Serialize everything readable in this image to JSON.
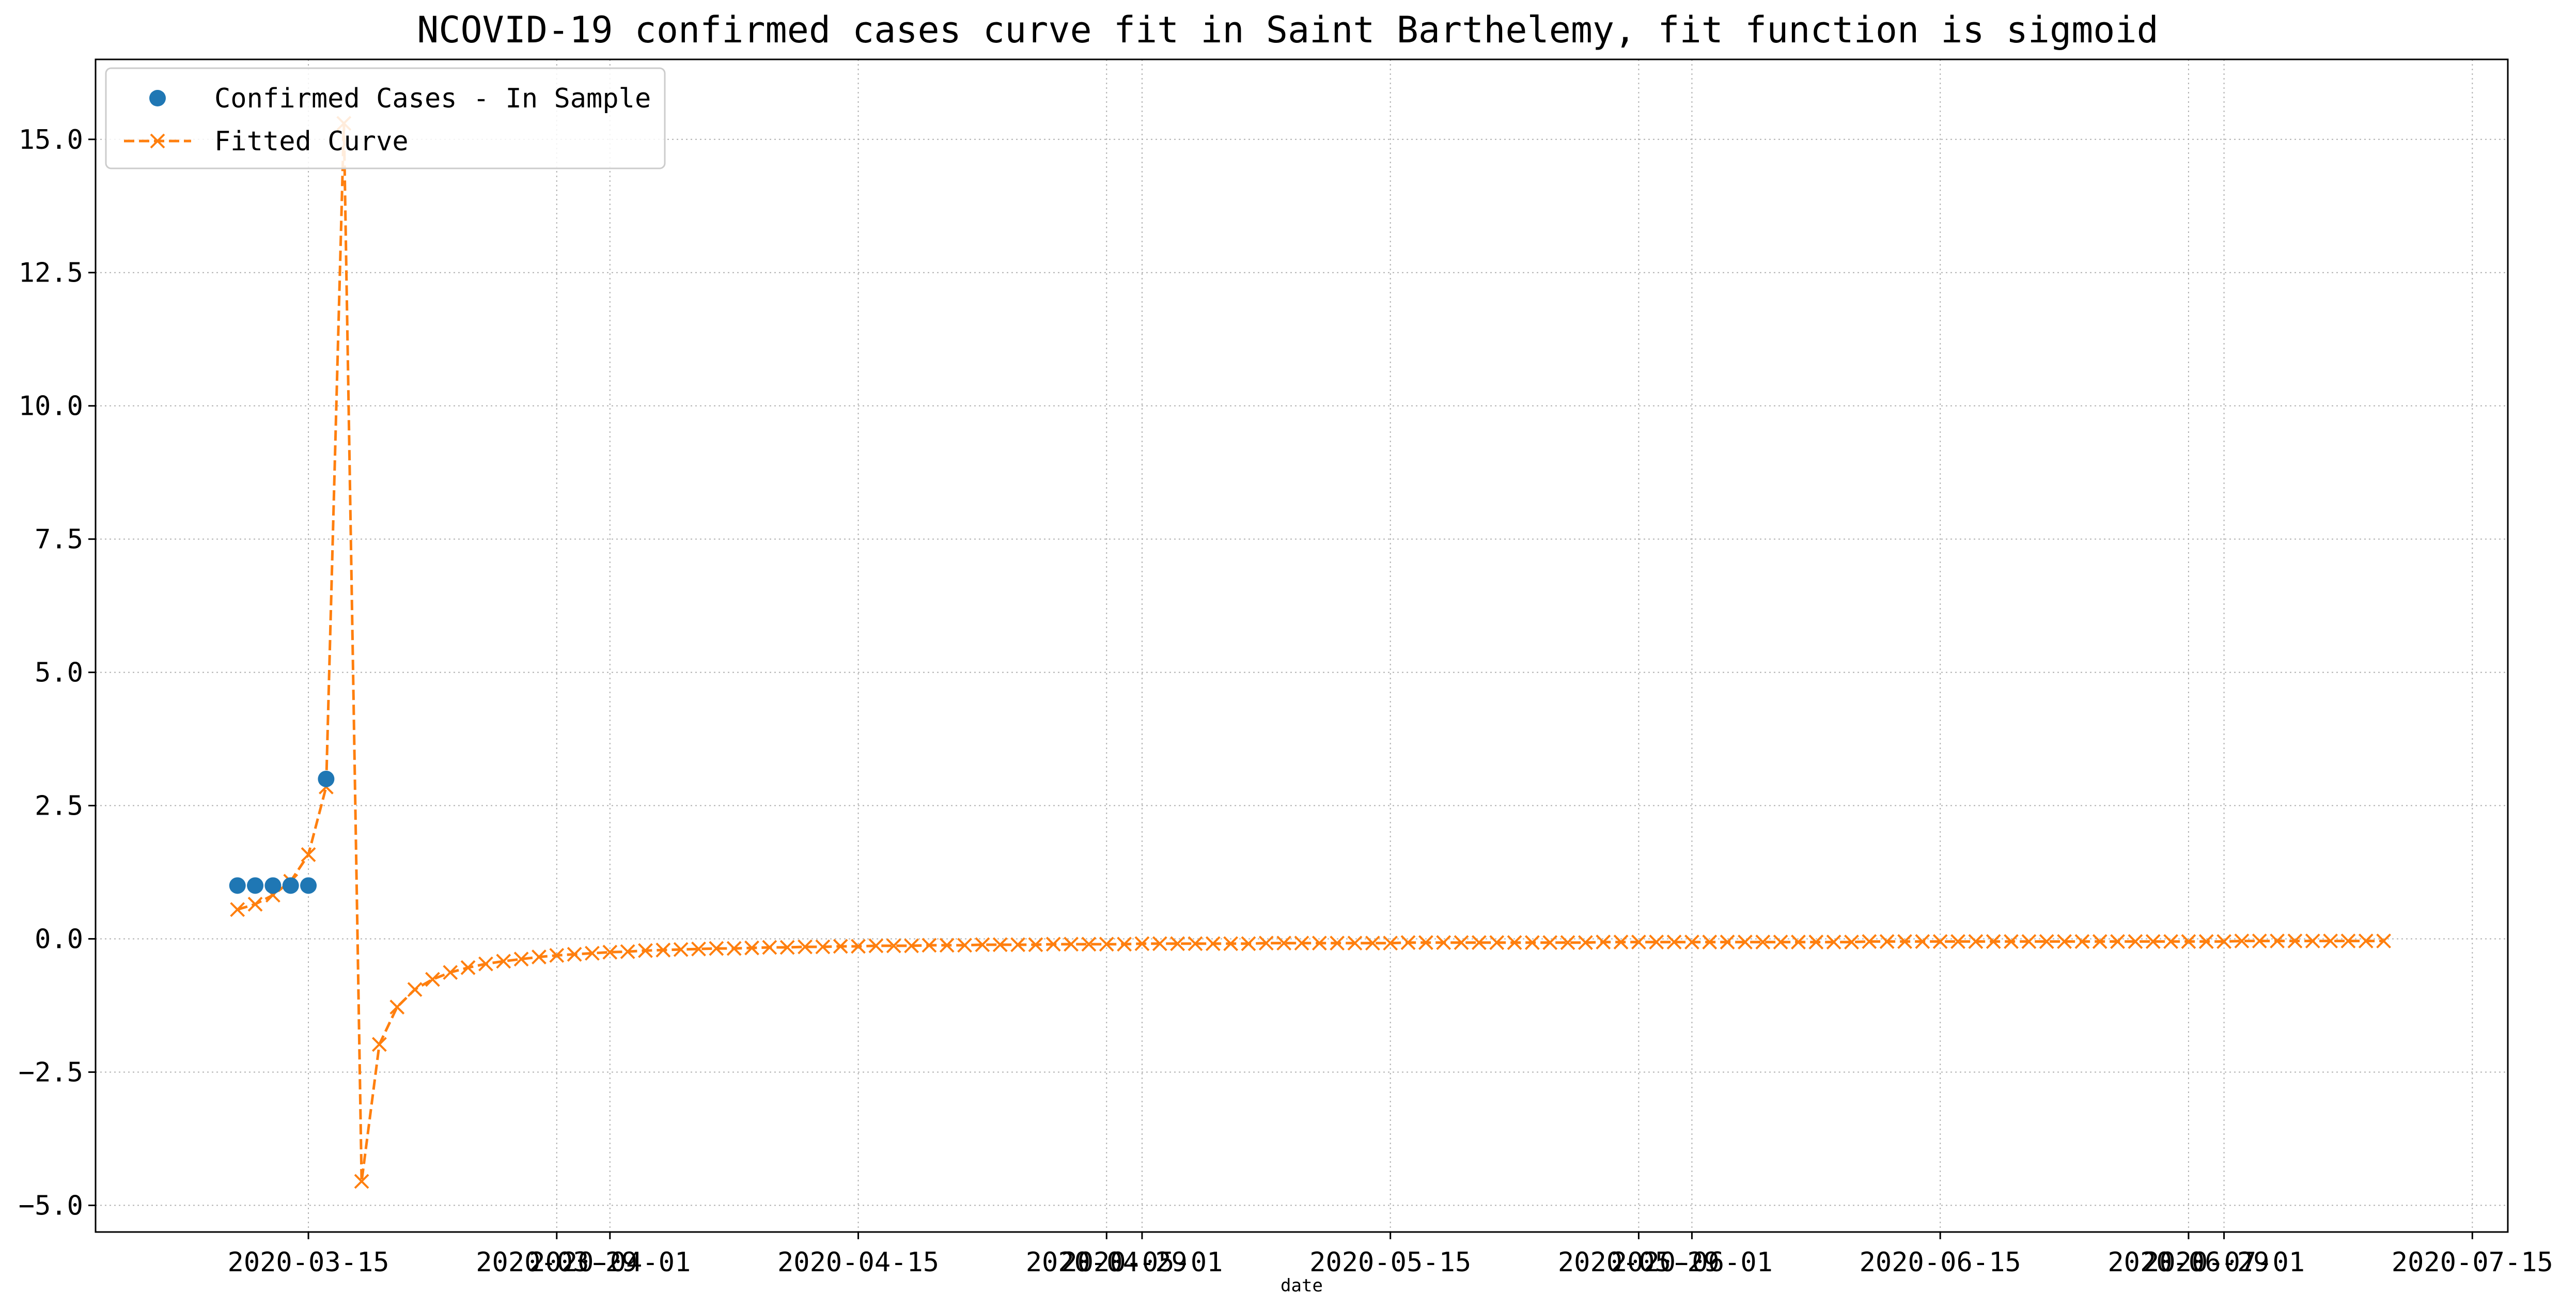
{
  "chart_data": {
    "type": "line",
    "title": "NCOVID-19 confirmed cases curve fit in Saint Barthelemy, fit function is sigmoid",
    "xlabel": "date",
    "ylabel": "",
    "x_axis_type": "date",
    "xlim": [
      "2020-03-03",
      "2020-07-17"
    ],
    "ylim": [
      -5.5,
      16.5
    ],
    "x_ticks": [
      "2020-03-15",
      "2020-03-29",
      "2020-04-01",
      "2020-04-15",
      "2020-04-29",
      "2020-05-01",
      "2020-05-15",
      "2020-05-29",
      "2020-06-01",
      "2020-06-15",
      "2020-06-29",
      "2020-07-01",
      "2020-07-15"
    ],
    "y_ticks": [
      -5.0,
      -2.5,
      0.0,
      2.5,
      5.0,
      7.5,
      10.0,
      12.5,
      15.0
    ],
    "y_tick_labels": [
      "−5.0",
      "−2.5",
      "0.0",
      "2.5",
      "5.0",
      "7.5",
      "10.0",
      "12.5",
      "15.0"
    ],
    "grid": true,
    "legend_position": "top-left",
    "series": [
      {
        "name": "Confirmed Cases - In Sample",
        "style": "points",
        "color": "#1f77b4",
        "start_date": "2020-03-11",
        "values": [
          1,
          1,
          1,
          1,
          1,
          3
        ]
      },
      {
        "name": "Fitted Curve",
        "style": "dashed-line-x-markers",
        "color": "#ff7f0e",
        "start_date": "2020-03-11",
        "values": [
          0.55,
          0.65,
          0.82,
          1.08,
          1.58,
          2.85,
          15.3,
          -4.55,
          -1.98,
          -1.28,
          -0.95,
          -0.76,
          -0.63,
          -0.54,
          -0.47,
          -0.42,
          -0.38,
          -0.34,
          -0.31,
          -0.29,
          -0.27,
          -0.25,
          -0.24,
          -0.22,
          -0.21,
          -0.2,
          -0.19,
          -0.18,
          -0.18,
          -0.17,
          -0.16,
          -0.16,
          -0.15,
          -0.15,
          -0.14,
          -0.14,
          -0.13,
          -0.13,
          -0.13,
          -0.12,
          -0.12,
          -0.12,
          -0.11,
          -0.11,
          -0.11,
          -0.11,
          -0.1,
          -0.1,
          -0.1,
          -0.1,
          -0.1,
          -0.09,
          -0.09,
          -0.09,
          -0.09,
          -0.09,
          -0.09,
          -0.09,
          -0.08,
          -0.08,
          -0.08,
          -0.08,
          -0.08,
          -0.08,
          -0.08,
          -0.08,
          -0.07,
          -0.07,
          -0.07,
          -0.07,
          -0.07,
          -0.07,
          -0.07,
          -0.07,
          -0.07,
          -0.07,
          -0.07,
          -0.06,
          -0.06,
          -0.06,
          -0.06,
          -0.06,
          -0.06,
          -0.06,
          -0.06,
          -0.06,
          -0.06,
          -0.06,
          -0.06,
          -0.06,
          -0.06,
          -0.06,
          -0.05,
          -0.05,
          -0.05,
          -0.05,
          -0.05,
          -0.05,
          -0.05,
          -0.05,
          -0.05,
          -0.05,
          -0.05,
          -0.05,
          -0.05,
          -0.05,
          -0.05,
          -0.05,
          -0.05,
          -0.05,
          -0.05,
          -0.05,
          -0.05,
          -0.04,
          -0.04,
          -0.04,
          -0.04,
          -0.04,
          -0.04,
          -0.04,
          -0.04,
          -0.04
        ]
      }
    ]
  }
}
